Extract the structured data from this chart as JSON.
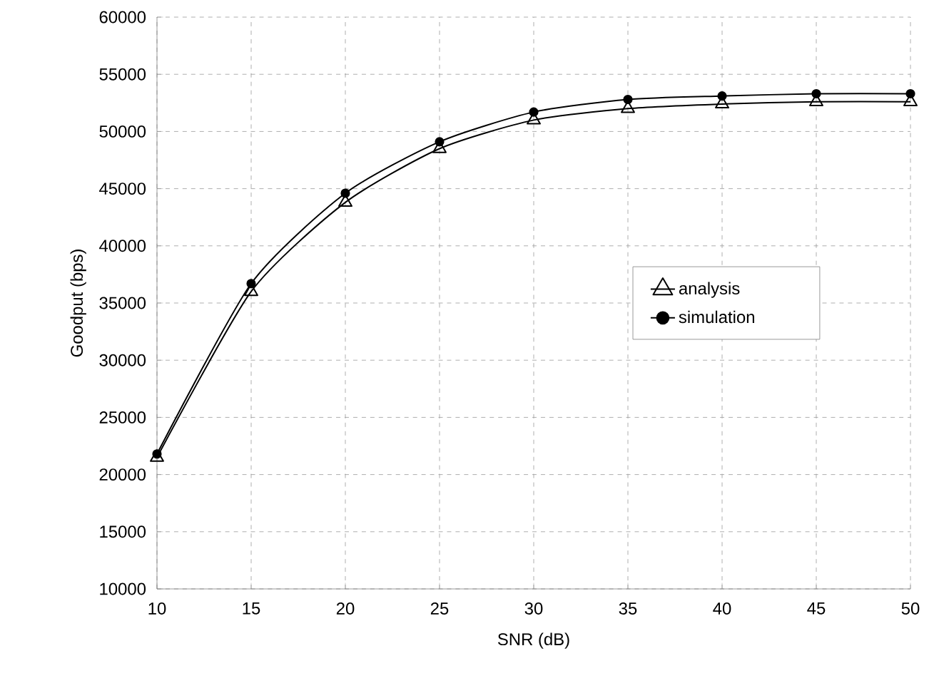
{
  "chart_data": {
    "type": "line",
    "xlabel": "SNR (dB)",
    "ylabel": "Goodput (bps)",
    "x": [
      10,
      15,
      20,
      25,
      30,
      35,
      40,
      45,
      50
    ],
    "series": [
      {
        "name": "analysis",
        "color": "#000000",
        "marker": "triangle",
        "values": [
          21500,
          36000,
          43800,
          48500,
          51000,
          52000,
          52400,
          52600,
          52600
        ]
      },
      {
        "name": "simulation",
        "color": "#000000",
        "marker": "circle",
        "values": [
          21800,
          36700,
          44600,
          49100,
          51700,
          52800,
          53100,
          53300,
          53300
        ]
      }
    ],
    "xlim": [
      10,
      50
    ],
    "ylim": [
      10000,
      60000
    ],
    "xticks": [
      10,
      15,
      20,
      25,
      30,
      35,
      40,
      45,
      50
    ],
    "yticks": [
      10000,
      15000,
      20000,
      25000,
      30000,
      35000,
      40000,
      45000,
      50000,
      55000,
      60000
    ],
    "grid": true,
    "legend": "right",
    "line_style": "solid"
  }
}
